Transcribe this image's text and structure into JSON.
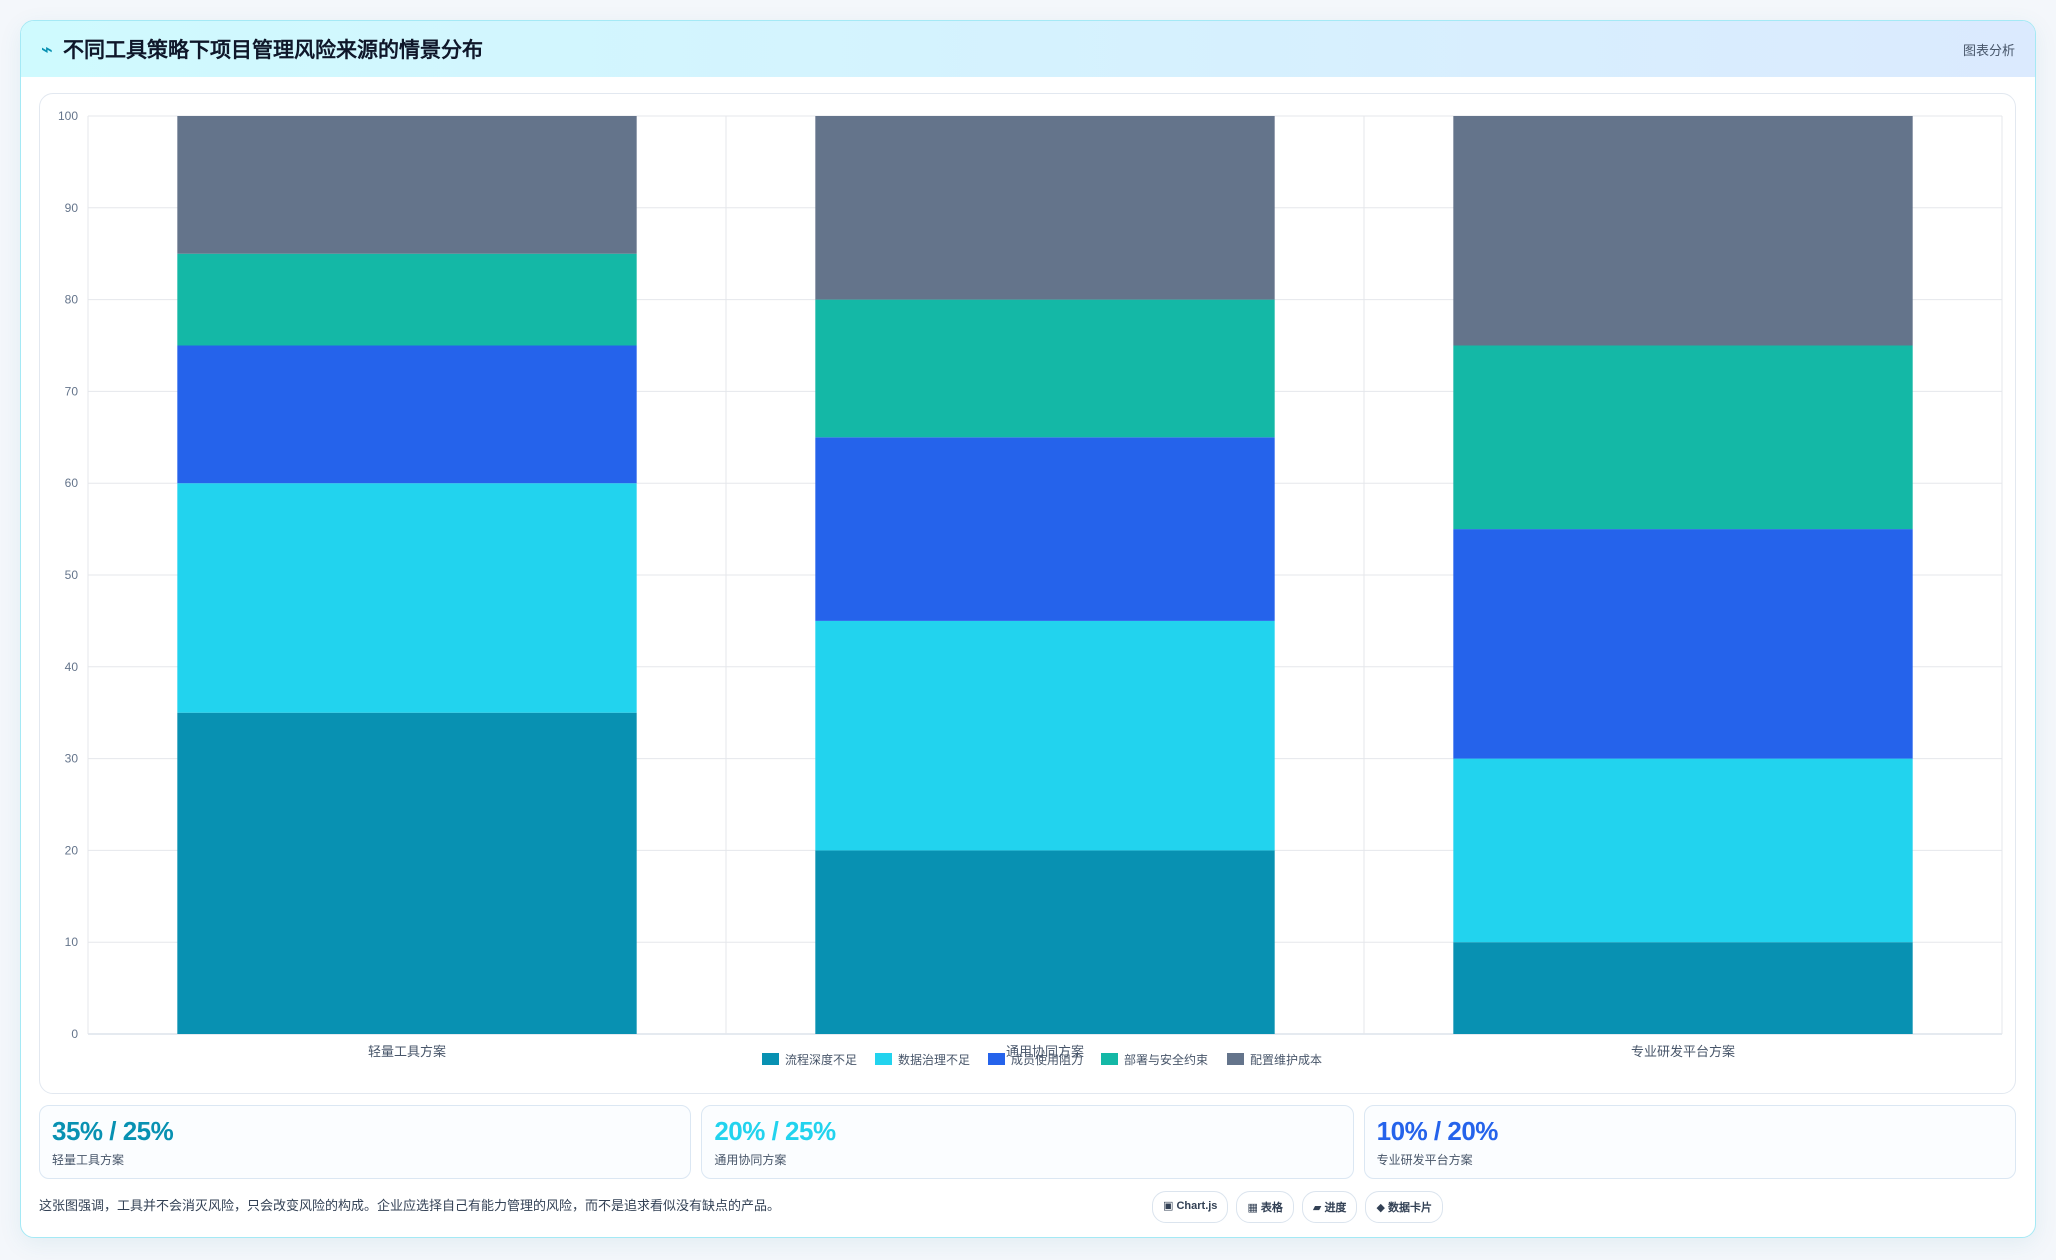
{
  "header": {
    "icon": "⌁",
    "title": "不同工具策略下项目管理风险来源的情景分布",
    "tag": "图表分析"
  },
  "chart_data": {
    "type": "bar",
    "stacked": true,
    "categories": [
      "轻量工具方案",
      "通用协同方案",
      "专业研发平台方案"
    ],
    "series": [
      {
        "name": "流程深度不足",
        "color": "#0891b2",
        "values": [
          35,
          20,
          10
        ]
      },
      {
        "name": "数据治理不足",
        "color": "#22d3ee",
        "values": [
          25,
          25,
          20
        ]
      },
      {
        "name": "成员使用阻力",
        "color": "#2563eb",
        "values": [
          15,
          20,
          25
        ]
      },
      {
        "name": "部署与安全约束",
        "color": "#14b8a6",
        "values": [
          10,
          15,
          20
        ]
      },
      {
        "name": "配置维护成本",
        "color": "#64748b",
        "values": [
          15,
          20,
          25
        ]
      }
    ],
    "ylim": [
      0,
      100
    ],
    "yticks": [
      0,
      10,
      20,
      30,
      40,
      50,
      60,
      70,
      80,
      90,
      100
    ],
    "legend_position": "bottom",
    "grid": true
  },
  "kpis": [
    {
      "value": "35% / 25%",
      "label": "轻量工具方案",
      "color": "#0891b2"
    },
    {
      "value": "20% / 25%",
      "label": "通用协同方案",
      "color": "#22d3ee"
    },
    {
      "value": "10% / 20%",
      "label": "专业研发平台方案",
      "color": "#2563eb"
    }
  ],
  "footer": {
    "note": "这张图强调，工具并不会消灭风险，只会改变风险的构成。企业应选择自己有能力管理的风险，而不是追求看似没有缺点的产品。",
    "chips": [
      {
        "icon": "▣",
        "label": "Chart.js"
      },
      {
        "icon": "▦",
        "label": "表格"
      },
      {
        "icon": "▰",
        "label": "进度"
      },
      {
        "icon": "◆",
        "label": "数据卡片"
      }
    ]
  }
}
